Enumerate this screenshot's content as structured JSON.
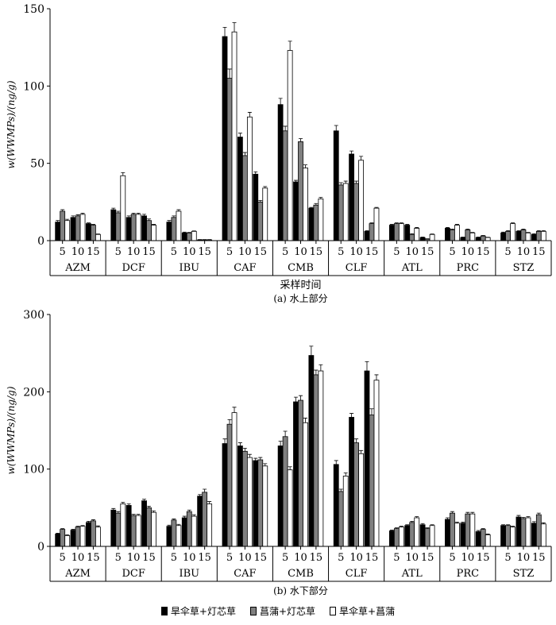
{
  "chart_data": [
    {
      "type": "bar",
      "title": "",
      "caption": "(a) 水上部分",
      "xlabel": "采样时间",
      "ylabel": "w(WWMPs)/(ng/g)",
      "ylim": [
        0,
        150
      ],
      "yticks": [
        0,
        50,
        100,
        150
      ],
      "groups": [
        "AZM",
        "DCF",
        "IBU",
        "CAF",
        "CMB",
        "CLF",
        "ATL",
        "PRC",
        "STZ"
      ],
      "times": [
        "5",
        "10",
        "15"
      ],
      "series": [
        {
          "name": "旱伞草+灯芯草",
          "color": "#000000",
          "values": [
            [
              12,
              15,
              11
            ],
            [
              20,
              15,
              16
            ],
            [
              12,
              5,
              0.5
            ],
            [
              132,
              67,
              43
            ],
            [
              88,
              38,
              21
            ],
            [
              71,
              56,
              6
            ],
            [
              10,
              10,
              2
            ],
            [
              8,
              2,
              2
            ],
            [
              5,
              6,
              4
            ]
          ],
          "errors": [
            [
              1,
              1,
              0.5
            ],
            [
              1,
              1,
              1
            ],
            [
              1,
              0.5,
              0.2
            ],
            [
              6,
              2.5,
              1.5
            ],
            [
              4,
              1,
              0.5
            ],
            [
              3.5,
              2,
              0.5
            ],
            [
              0.5,
              0.5,
              0.3
            ],
            [
              0.5,
              0.3,
              0.3
            ],
            [
              0.5,
              0.5,
              0.5
            ]
          ]
        },
        {
          "name": "菖蒲+灯芯草",
          "color": "#808080",
          "values": [
            [
              19,
              16,
              10
            ],
            [
              18,
              17,
              13
            ],
            [
              15,
              5,
              0.5
            ],
            [
              105,
              55,
              25
            ],
            [
              71,
              64,
              23
            ],
            [
              36,
              37,
              11
            ],
            [
              11,
              4,
              1
            ],
            [
              7,
              7,
              3
            ],
            [
              6,
              7,
              6
            ]
          ],
          "errors": [
            [
              1,
              0.8,
              0.5
            ],
            [
              1,
              0.8,
              1
            ],
            [
              1,
              0.3,
              0.2
            ],
            [
              6,
              2,
              1
            ],
            [
              3,
              2,
              1
            ],
            [
              1.5,
              1.5,
              0.5
            ],
            [
              0.5,
              0.5,
              0.2
            ],
            [
              0.5,
              0.5,
              0.3
            ],
            [
              0.5,
              0.5,
              0.5
            ]
          ]
        },
        {
          "name": "旱伞草+菖蒲",
          "color": "#ffffff",
          "values": [
            [
              13,
              17,
              4
            ],
            [
              42,
              17,
              10
            ],
            [
              19,
              6,
              0.5
            ],
            [
              135,
              80,
              34
            ],
            [
              123,
              47,
              27
            ],
            [
              37,
              52,
              21
            ],
            [
              11,
              8,
              4
            ],
            [
              10,
              5,
              2
            ],
            [
              11,
              5,
              6
            ]
          ],
          "errors": [
            [
              0.8,
              0.8,
              0.3
            ],
            [
              2,
              0.8,
              0.5
            ],
            [
              1,
              0.3,
              0.2
            ],
            [
              6,
              3,
              1
            ],
            [
              6,
              2,
              1
            ],
            [
              1.5,
              2.5,
              0.5
            ],
            [
              0.5,
              0.5,
              0.3
            ],
            [
              0.5,
              0.3,
              0.2
            ],
            [
              0.5,
              0.3,
              0.5
            ]
          ]
        }
      ]
    },
    {
      "type": "bar",
      "title": "",
      "caption": "(b) 水下部分",
      "xlabel": "",
      "ylabel": "w(WWMPs)/(ng/g)",
      "ylim": [
        0,
        300
      ],
      "yticks": [
        0,
        100,
        200,
        300
      ],
      "groups": [
        "AZM",
        "DCF",
        "IBU",
        "CAF",
        "CMB",
        "CLF",
        "ATL",
        "PRC",
        "STZ"
      ],
      "times": [
        "5",
        "10",
        "15"
      ],
      "series": [
        {
          "name": "旱伞草+灯芯草",
          "color": "#000000",
          "values": [
            [
              16,
              21,
              31
            ],
            [
              47,
              53,
              59
            ],
            [
              26,
              37,
              65
            ],
            [
              133,
              130,
              111
            ],
            [
              130,
              187,
              247
            ],
            [
              106,
              167,
              227
            ],
            [
              20,
              27,
              28
            ],
            [
              35,
              30,
              19
            ],
            [
              27,
              38,
              30
            ]
          ],
          "errors": [
            [
              1,
              1,
              1.5
            ],
            [
              2,
              2,
              2
            ],
            [
              1.5,
              2,
              2
            ],
            [
              6,
              4,
              3
            ],
            [
              6,
              6,
              12
            ],
            [
              5,
              5,
              12
            ],
            [
              1,
              1,
              1.5
            ],
            [
              2,
              1.5,
              1.5
            ],
            [
              1,
              2,
              2
            ]
          ]
        },
        {
          "name": "菖蒲+灯芯草",
          "color": "#808080",
          "values": [
            [
              22,
              25,
              33
            ],
            [
              43,
              40,
              50
            ],
            [
              34,
              45,
              70
            ],
            [
              158,
              123,
              112
            ],
            [
              142,
              189,
              222
            ],
            [
              71,
              134,
              170
            ],
            [
              23,
              31,
              23
            ],
            [
              43,
              42,
              22
            ],
            [
              27,
              36,
              41
            ]
          ],
          "errors": [
            [
              1,
              1,
              1.5
            ],
            [
              2,
              1.5,
              2
            ],
            [
              1.5,
              2,
              4
            ],
            [
              6,
              4,
              3
            ],
            [
              7,
              6,
              6
            ],
            [
              3,
              5,
              8
            ],
            [
              1,
              1.5,
              1
            ],
            [
              2,
              2,
              1
            ],
            [
              1,
              1.5,
              2
            ]
          ]
        },
        {
          "name": "旱伞草+菖蒲",
          "color": "#ffffff",
          "values": [
            [
              14,
              26,
              25
            ],
            [
              55,
              40,
              44
            ],
            [
              27,
              39,
              55
            ],
            [
              173,
              115,
              104
            ],
            [
              99,
              160,
              227
            ],
            [
              91,
              120,
              215
            ],
            [
              25,
              37,
              27
            ],
            [
              30,
              42,
              15
            ],
            [
              25,
              37,
              29
            ]
          ],
          "errors": [
            [
              1,
              1,
              1.5
            ],
            [
              2,
              1.5,
              2
            ],
            [
              1.5,
              2,
              3
            ],
            [
              7,
              4,
              3
            ],
            [
              4,
              6,
              8
            ],
            [
              4,
              4,
              7
            ],
            [
              1,
              1.5,
              1
            ],
            [
              1.5,
              2,
              1
            ],
            [
              1,
              1.5,
              1.5
            ]
          ]
        }
      ]
    }
  ]
}
